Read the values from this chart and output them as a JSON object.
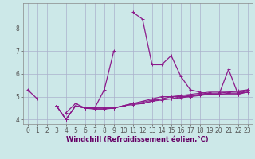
{
  "x": [
    0,
    1,
    2,
    3,
    4,
    5,
    6,
    7,
    8,
    9,
    10,
    11,
    12,
    13,
    14,
    15,
    16,
    17,
    18,
    19,
    20,
    21,
    22,
    23
  ],
  "line1": [
    5.3,
    4.9,
    null,
    null,
    4.3,
    4.7,
    4.5,
    4.5,
    5.3,
    7.0,
    null,
    8.7,
    8.4,
    6.4,
    6.4,
    6.8,
    5.9,
    5.3,
    5.2,
    5.1,
    5.1,
    6.2,
    5.1,
    5.3
  ],
  "line2": [
    null,
    null,
    null,
    4.6,
    4.0,
    4.6,
    4.5,
    4.45,
    4.45,
    4.5,
    4.6,
    4.65,
    4.7,
    4.8,
    4.85,
    4.9,
    4.95,
    5.0,
    5.05,
    5.1,
    5.1,
    5.15,
    5.15,
    5.2
  ],
  "line3": [
    null,
    null,
    null,
    4.6,
    4.0,
    4.6,
    4.5,
    4.5,
    4.5,
    4.5,
    4.6,
    4.7,
    4.75,
    4.85,
    4.9,
    5.0,
    5.0,
    5.05,
    5.1,
    5.15,
    5.15,
    5.2,
    5.2,
    5.25
  ],
  "line4": [
    null,
    null,
    null,
    4.6,
    4.0,
    4.6,
    4.5,
    4.5,
    4.5,
    4.5,
    4.6,
    4.7,
    4.8,
    4.9,
    5.0,
    5.0,
    5.05,
    5.1,
    5.15,
    5.2,
    5.2,
    5.2,
    5.25,
    5.3
  ],
  "line5": [
    null,
    null,
    null,
    4.6,
    4.0,
    4.6,
    4.5,
    4.5,
    4.5,
    4.5,
    4.6,
    4.7,
    4.7,
    4.8,
    4.9,
    4.9,
    5.0,
    5.0,
    5.1,
    5.1,
    5.1,
    5.1,
    5.1,
    5.2
  ],
  "line_color": "#8b1a8b",
  "bg_color": "#cce8e8",
  "grid_color": "#aab0cc",
  "xlabel": "Windchill (Refroidissement éolien,°C)",
  "xlabel_color": "#660066",
  "ylim": [
    3.8,
    9.1
  ],
  "xlim": [
    -0.5,
    23.5
  ],
  "yticks": [
    4,
    5,
    6,
    7,
    8
  ],
  "xticks": [
    0,
    1,
    2,
    3,
    4,
    5,
    6,
    7,
    8,
    9,
    10,
    11,
    12,
    13,
    14,
    15,
    16,
    17,
    18,
    19,
    20,
    21,
    22,
    23
  ],
  "tick_fontsize": 5.5,
  "xlabel_fontsize": 6.0
}
